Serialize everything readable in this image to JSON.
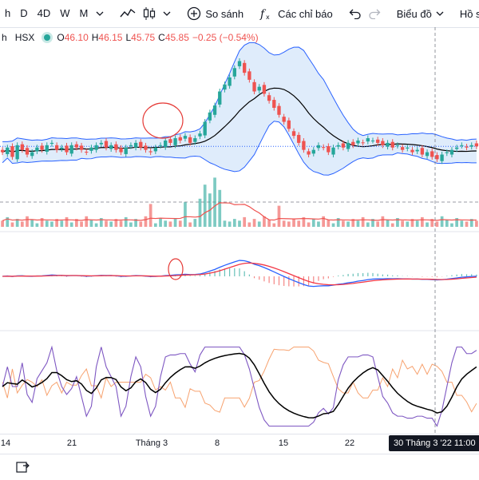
{
  "toolbar": {
    "timeframes": [
      "h",
      "D",
      "4D",
      "W",
      "M"
    ],
    "compare_label": "So sánh",
    "indicators_label": "Các chỉ báo",
    "chart_type_label": "Biểu đồ",
    "profile_label": "Hồ sơ",
    "icons": [
      "chevron-down-icon",
      "line-chart-icon",
      "candlestick-icon",
      "plus-circle-icon",
      "fx-icon",
      "undo-icon",
      "redo-icon"
    ]
  },
  "legend": {
    "symbol_fragment": "h",
    "exchange": "HSX",
    "status_color": "#26a69a",
    "o_label": "O",
    "o_value": "46.10",
    "h_label": "H",
    "h_value": "46.15",
    "l_label": "L",
    "l_value": "45.75",
    "c_label": "C",
    "c_value": "45.85",
    "change": "−0.25 (−0.54%)"
  },
  "time_axis": {
    "ticks": [
      "14",
      "21",
      "Tháng 3",
      "8",
      "15",
      "22"
    ],
    "crosshair_label": "30 Tháng 3 '22   11:00"
  },
  "colors": {
    "up": "#26a69a",
    "down": "#ef5350",
    "bb_fill": "#dbeafb",
    "bb_line": "#2962ff",
    "macd": "#2962ff",
    "signal": "#f23645",
    "stoch_k": "#7e57c2",
    "stoch_d": "#000000",
    "rsi": "#f7a26f"
  },
  "chart_data": {
    "type": "line",
    "description_units": "price (VND thousands)",
    "close": [
      45.6,
      45.8,
      45.4,
      45.9,
      45.7,
      45.5,
      45.6,
      45.8,
      45.7,
      45.9,
      46.0,
      45.7,
      45.8,
      45.6,
      45.9,
      45.8,
      45.7,
      45.6,
      45.8,
      45.9,
      46.0,
      45.8,
      45.9,
      45.7,
      45.6,
      45.8,
      45.9,
      46.0,
      45.8,
      45.7,
      45.6,
      45.8,
      45.9,
      46.1,
      46.0,
      46.2,
      46.1,
      46.3,
      46.0,
      46.2,
      46.4,
      46.9,
      47.3,
      47.6,
      48.2,
      48.5,
      48.8,
      49.2,
      49.5,
      49.0,
      48.7,
      48.2,
      48.4,
      48.1,
      47.8,
      47.5,
      47.2,
      46.9,
      46.6,
      46.3,
      46.0,
      45.7,
      45.5,
      45.7,
      45.9,
      45.8,
      45.6,
      45.8,
      45.9,
      45.8,
      46.0,
      45.9,
      46.1,
      46.0,
      46.2,
      46.1,
      46.0,
      45.9,
      46.0,
      45.8,
      45.9,
      45.7,
      45.8,
      45.6,
      45.7,
      45.5,
      45.6,
      45.4,
      45.3,
      45.5,
      45.6,
      45.7,
      45.8,
      45.9,
      45.8,
      45.9,
      45.85
    ],
    "open_offset_pattern": [
      0.2,
      -0.2,
      0.15,
      -0.25,
      0.1,
      0.2,
      -0.15,
      0.1
    ],
    "bb_ylim": [
      44.8,
      50.2
    ],
    "volume_pattern": [
      0.35,
      0.55,
      0.25,
      0.45,
      0.3,
      0.6,
      0.4,
      0.2,
      0.5,
      0.35,
      0.3,
      0.45
    ],
    "volume_spikes": {
      "40": 1.6,
      "41": 2.4,
      "42": 1.9,
      "43": 2.8,
      "44": 2.1,
      "37": 1.4,
      "30": 1.3,
      "56": 1.2
    },
    "macd_ylim": [
      -1.6,
      1.6
    ],
    "oscillator_ylim": [
      0,
      100
    ]
  }
}
